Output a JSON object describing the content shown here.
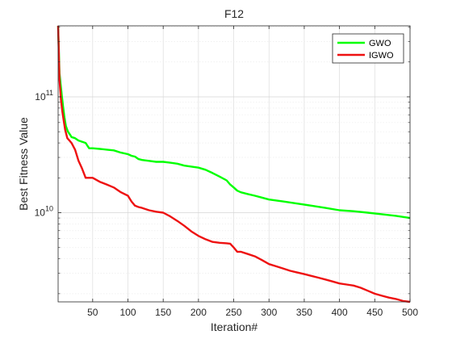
{
  "chart_data": {
    "type": "line",
    "title": "F12",
    "xlabel": "Iteration#",
    "ylabel": "Best Fitness Value",
    "xlim": [
      1,
      500
    ],
    "ylim": [
      1700000000.0,
      410000000000.0
    ],
    "yscale": "log",
    "grid": true,
    "legend_position": "top-right",
    "x_ticks": [
      50,
      100,
      150,
      200,
      250,
      300,
      350,
      400,
      450,
      500
    ],
    "y_ticks": [
      {
        "value": 10000000000.0,
        "base": "10",
        "exp": "10"
      },
      {
        "value": 100000000000.0,
        "base": "10",
        "exp": "11"
      }
    ],
    "series": [
      {
        "name": "GWO",
        "color": "#00ff00",
        "x": [
          1,
          3,
          6,
          8,
          10,
          12,
          15,
          18,
          20,
          25,
          30,
          35,
          40,
          45,
          50,
          60,
          70,
          80,
          90,
          100,
          105,
          110,
          115,
          120,
          130,
          140,
          150,
          160,
          170,
          180,
          190,
          200,
          210,
          220,
          230,
          240,
          245,
          250,
          255,
          260,
          270,
          280,
          290,
          300,
          320,
          340,
          360,
          380,
          400,
          420,
          440,
          460,
          480,
          500
        ],
        "y": [
          410000000000.0,
          160000000000.0,
          105000000000.0,
          83000000000.0,
          66000000000.0,
          56000000000.0,
          50000000000.0,
          47000000000.0,
          45000000000.0,
          44000000000.0,
          42000000000.0,
          41000000000.0,
          40000000000.0,
          36000000000.0,
          36000000000.0,
          35500000000.0,
          35000000000.0,
          34500000000.0,
          33000000000.0,
          32000000000.0,
          31000000000.0,
          30500000000.0,
          29000000000.0,
          28500000000.0,
          28000000000.0,
          27500000000.0,
          27500000000.0,
          27000000000.0,
          26500000000.0,
          25500000000.0,
          25000000000.0,
          24500000000.0,
          23500000000.0,
          22000000000.0,
          20500000000.0,
          19000000000.0,
          17500000000.0,
          16500000000.0,
          15500000000.0,
          15000000000.0,
          14500000000.0,
          14000000000.0,
          13500000000.0,
          13000000000.0,
          12500000000.0,
          12000000000.0,
          11500000000.0,
          11000000000.0,
          10500000000.0,
          10300000000.0,
          10000000000.0,
          9700000000.0,
          9400000000.0,
          9000000000.0
        ]
      },
      {
        "name": "IGWO",
        "color": "#ee1111",
        "x": [
          1,
          3,
          5,
          7,
          9,
          11,
          14,
          17,
          20,
          25,
          30,
          35,
          40,
          45,
          50,
          60,
          70,
          80,
          90,
          100,
          105,
          110,
          115,
          120,
          130,
          140,
          150,
          160,
          170,
          180,
          190,
          200,
          210,
          220,
          230,
          240,
          245,
          250,
          255,
          260,
          270,
          280,
          290,
          300,
          310,
          320,
          330,
          340,
          350,
          360,
          370,
          380,
          390,
          400,
          410,
          420,
          430,
          440,
          450,
          460,
          470,
          480,
          490,
          500
        ],
        "y": [
          410000000000.0,
          140000000000.0,
          95000000000.0,
          75000000000.0,
          62000000000.0,
          52000000000.0,
          44000000000.0,
          42000000000.0,
          40000000000.0,
          35000000000.0,
          28000000000.0,
          24000000000.0,
          20000000000.0,
          20000000000.0,
          20000000000.0,
          18500000000.0,
          17500000000.0,
          16500000000.0,
          15000000000.0,
          14000000000.0,
          12500000000.0,
          11500000000.0,
          11200000000.0,
          11000000000.0,
          10500000000.0,
          10200000000.0,
          10000000000.0,
          9300000000.0,
          8500000000.0,
          7700000000.0,
          6900000000.0,
          6300000000.0,
          5900000000.0,
          5600000000.0,
          5500000000.0,
          5450000000.0,
          5400000000.0,
          5000000000.0,
          4600000000.0,
          4600000000.0,
          4400000000.0,
          4200000000.0,
          3900000000.0,
          3600000000.0,
          3450000000.0,
          3300000000.0,
          3150000000.0,
          3050000000.0,
          2950000000.0,
          2850000000.0,
          2750000000.0,
          2650000000.0,
          2550000000.0,
          2450000000.0,
          2400000000.0,
          2350000000.0,
          2250000000.0,
          2120000000.0,
          2000000000.0,
          1920000000.0,
          1850000000.0,
          1800000000.0,
          1730000000.0,
          1700000000.0
        ]
      }
    ]
  }
}
